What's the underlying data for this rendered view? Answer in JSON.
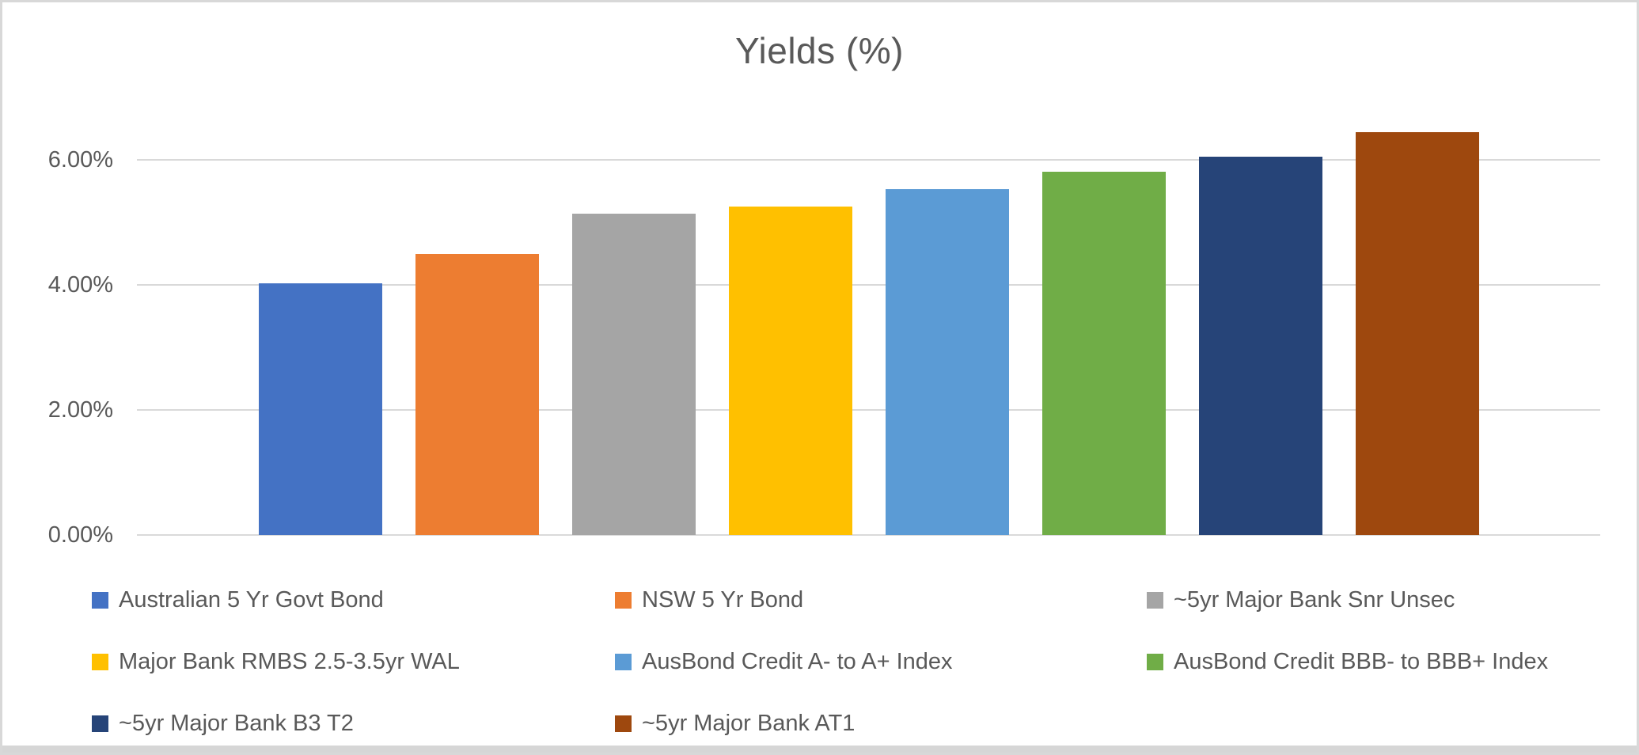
{
  "window": {
    "background": "#FFFFFF",
    "border_color": "#D8D8D8",
    "bottom_strip_color": "#D6D6D6"
  },
  "chart_data": {
    "type": "bar",
    "title": "Yields (%)",
    "title_color": "#595959",
    "xlabel": "",
    "ylabel": "",
    "series": [
      {
        "name": "Australian 5 Yr Govt Bond",
        "value": 4.02,
        "color": "#4472C4"
      },
      {
        "name": "NSW 5 Yr Bond",
        "value": 4.49,
        "color": "#ED7D31"
      },
      {
        "name": "~5yr Major Bank Snr Unsec",
        "value": 5.14,
        "color": "#A5A5A5"
      },
      {
        "name": "Major Bank RMBS 2.5-3.5yr WAL",
        "value": 5.25,
        "color": "#FFC000"
      },
      {
        "name": "AusBond Credit A- to A+ Index",
        "value": 5.53,
        "color": "#5B9BD5"
      },
      {
        "name": "AusBond Credit BBB- to BBB+ Index",
        "value": 5.81,
        "color": "#70AD47"
      },
      {
        "name": "~5yr Major Bank B3 T2",
        "value": 6.05,
        "color": "#264478"
      },
      {
        "name": "~5yr Major Bank AT1",
        "value": 6.44,
        "color": "#9E480E"
      }
    ],
    "y_axis": {
      "min": 0,
      "max": 7,
      "tick_format": "percent_two_decimals",
      "ticks": [
        {
          "value": 0,
          "label": "0.00%"
        },
        {
          "value": 2,
          "label": "2.00%"
        },
        {
          "value": 4,
          "label": "4.00%"
        },
        {
          "value": 6,
          "label": "6.00%"
        }
      ],
      "tick_color": "#595959"
    },
    "gridlines": {
      "show": true,
      "color": "#D9D9D9"
    },
    "legend": {
      "position": "bottom",
      "text_color": "#595959",
      "rows": [
        [
          0,
          1,
          2
        ],
        [
          3,
          4,
          5
        ],
        [
          6,
          7
        ]
      ]
    }
  }
}
